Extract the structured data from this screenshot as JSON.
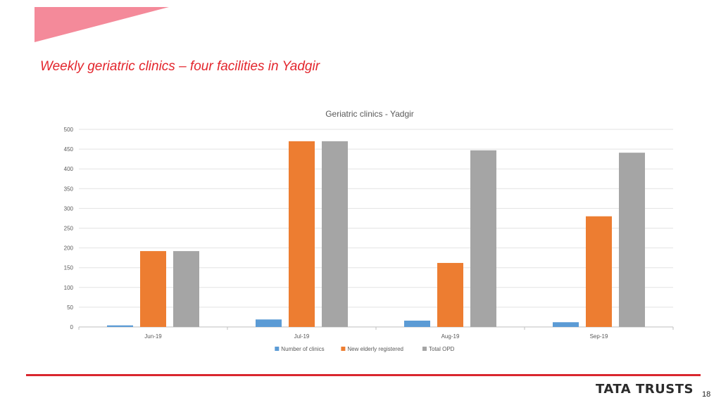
{
  "slide": {
    "title": "Weekly geriatric clinics – four facilities in Yadgir",
    "brand": "TATA TRUSTS",
    "page_number": "18",
    "accent_color": "#e3262d",
    "corner_shape_color": "#f48a9a"
  },
  "chart_data": {
    "type": "bar",
    "title": "Geriatric clinics - Yadgir",
    "xlabel": "",
    "ylabel": "",
    "categories": [
      "Jun-19",
      "Jul-19",
      "Aug-19",
      "Sep-19"
    ],
    "ylim": [
      0,
      500
    ],
    "yticks": [
      0,
      50,
      100,
      150,
      200,
      250,
      300,
      350,
      400,
      450,
      500
    ],
    "grid": true,
    "legend_position": "bottom",
    "series": [
      {
        "name": "Number of clinics",
        "color": "#5b9bd5",
        "values": [
          4,
          19,
          16,
          12
        ]
      },
      {
        "name": "New elderly registered",
        "color": "#ed7d31",
        "values": [
          192,
          470,
          162,
          280
        ]
      },
      {
        "name": "Total OPD",
        "color": "#a5a5a5",
        "values": [
          192,
          470,
          447,
          441
        ]
      }
    ]
  }
}
